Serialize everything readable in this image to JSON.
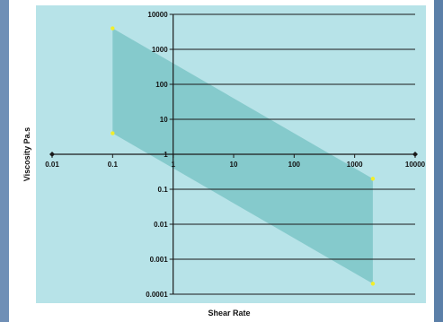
{
  "colors": {
    "background": "#5b7fa8",
    "plot_area": "#b7e3e8",
    "band": "#7cc6c7",
    "gridline": "#1a1a1a",
    "marker": "#f2ee2a"
  },
  "chart_data": {
    "type": "area",
    "title": "",
    "xlabel": "Shear Rate",
    "ylabel": "Viscosity Pa.s",
    "x_scale": "log",
    "y_scale": "log",
    "xlim": [
      0.01,
      10000
    ],
    "ylim": [
      0.0001,
      10000
    ],
    "x_ticks": [
      "0.01",
      "0.1",
      "1",
      "10",
      "100",
      "1000",
      "10000"
    ],
    "y_ticks": [
      "0.0001",
      "0.001",
      "0.01",
      "0.1",
      "1",
      "10",
      "100",
      "1000",
      "10000"
    ],
    "grid": "horizontal",
    "series": [
      {
        "x": [
          0.1,
          2000
        ],
        "y": [
          4000,
          0.2
        ]
      },
      {
        "x": [
          0.1,
          2000
        ],
        "y": [
          4,
          0.0002
        ]
      }
    ],
    "band_polygon": {
      "x": [
        0.1,
        2000,
        2000,
        0.1
      ],
      "y": [
        4000,
        0.2,
        0.0002,
        4
      ]
    }
  }
}
